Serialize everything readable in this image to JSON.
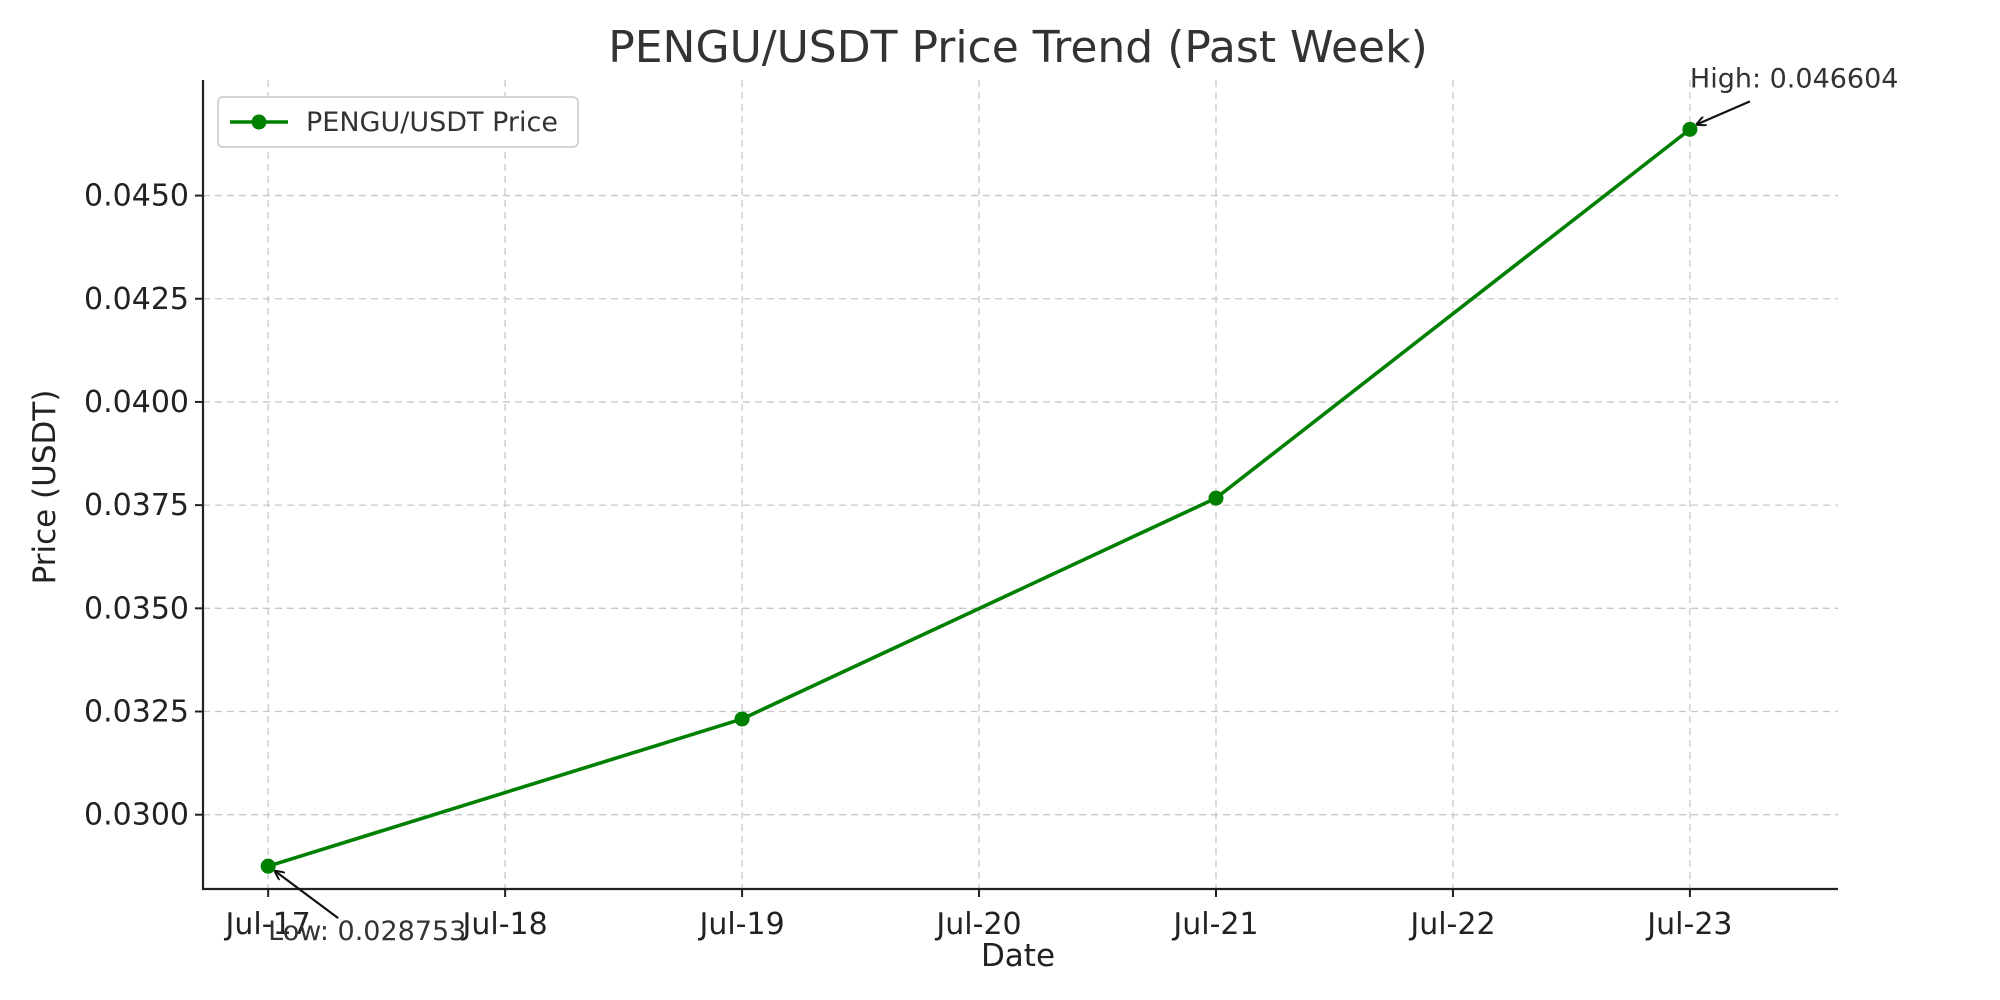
{
  "chart_data": {
    "type": "line",
    "title": "PENGU/USDT Price Trend (Past Week)",
    "xlabel": "Date",
    "ylabel": "Price (USDT)",
    "x_ticks": [
      "Jul-17",
      "Jul-18",
      "Jul-19",
      "Jul-20",
      "Jul-21",
      "Jul-22",
      "Jul-23"
    ],
    "y_ticks": [
      "0.0300",
      "0.0325",
      "0.0350",
      "0.0375",
      "0.0400",
      "0.0425",
      "0.0450"
    ],
    "ylim": [
      0.0282,
      0.0478
    ],
    "xlim": [
      "2023-07-16T17:24",
      "2023-07-23T15:00"
    ],
    "grid": true,
    "legend_position": "top-left",
    "series": [
      {
        "name": "PENGU/USDT Price",
        "color": "#008000",
        "marker": "circle",
        "x": [
          "2023-07-17",
          "2023-07-19",
          "2023-07-21",
          "2023-07-23"
        ],
        "values": [
          0.028753,
          0.03232,
          0.03767,
          0.046604
        ]
      }
    ],
    "annotations": [
      {
        "text": "High: 0.046604",
        "x": "2023-07-23",
        "y": 0.046604,
        "placement": "above-right"
      },
      {
        "text": "Low: 0.028753",
        "x": "2023-07-17",
        "y": 0.028753,
        "placement": "below-right"
      }
    ]
  }
}
